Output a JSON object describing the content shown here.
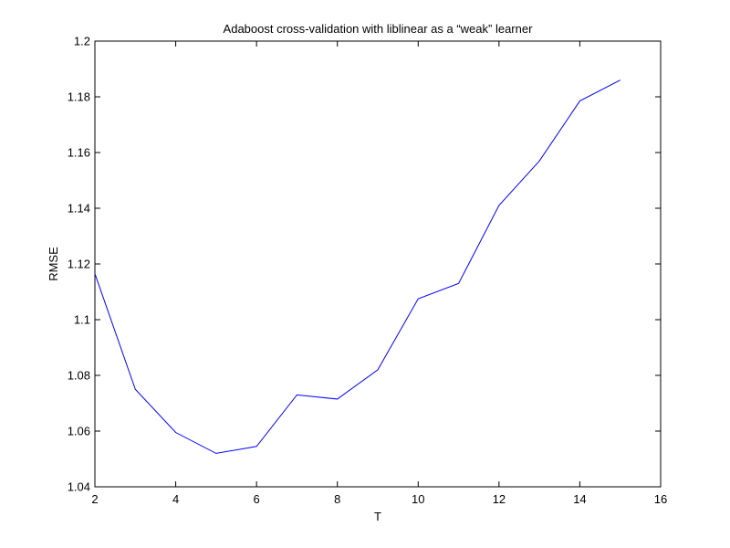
{
  "chart_data": {
    "type": "line",
    "title": "Adaboost cross-validation with liblinear as a “weak” learner",
    "xlabel": "T",
    "ylabel": "RMSE",
    "xlim": [
      2,
      16
    ],
    "ylim": [
      1.04,
      1.2
    ],
    "x_ticks": [
      2,
      4,
      6,
      8,
      10,
      12,
      14,
      16
    ],
    "y_ticks": [
      1.04,
      1.06,
      1.08,
      1.1,
      1.12,
      1.14,
      1.16,
      1.18,
      1.2
    ],
    "x_tick_labels": [
      "2",
      "4",
      "6",
      "8",
      "10",
      "12",
      "14",
      "16"
    ],
    "y_tick_labels": [
      "1.04",
      "1.06",
      "1.08",
      "1.1",
      "1.12",
      "1.14",
      "1.16",
      "1.18",
      "1.2"
    ],
    "grid": false,
    "series": [
      {
        "color": "#0000ff",
        "x": [
          2,
          3,
          4,
          5,
          6,
          7,
          8,
          9,
          10,
          11,
          12,
          13,
          14,
          15
        ],
        "y": [
          1.1165,
          1.075,
          1.0595,
          1.052,
          1.0545,
          1.073,
          1.0715,
          1.082,
          1.1075,
          1.113,
          1.141,
          1.157,
          1.1785,
          1.186
        ]
      }
    ]
  }
}
